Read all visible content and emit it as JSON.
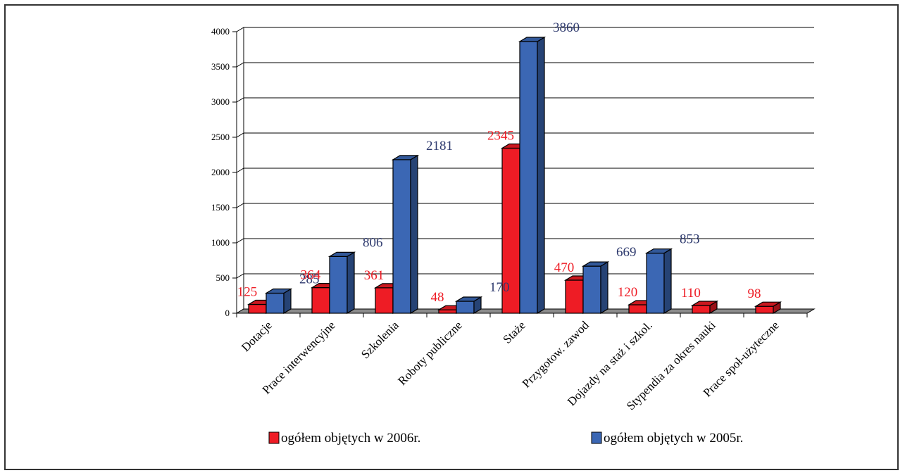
{
  "chart_data": {
    "type": "bar",
    "title": "",
    "xlabel": "",
    "ylabel": "",
    "ylim": [
      0,
      4000
    ],
    "yticks": [
      0,
      500,
      1000,
      1500,
      2000,
      2500,
      3000,
      3500,
      4000
    ],
    "grid": true,
    "legend_position": "bottom",
    "categories": [
      "Dotacje",
      "Prace interwencyjne",
      "Szkolenia",
      "Roboty publiczne",
      "Staże",
      "Przygotow. zawod",
      "Dojazdy na staż i szkol.",
      "Stypendia za okres nauki",
      "Prace społ-użyteczne"
    ],
    "series": [
      {
        "name": "ogółem objętych w 2006r.",
        "color": "#ee1c25",
        "label_color": "#ee1c25",
        "values": [
          125,
          364,
          361,
          48,
          2345,
          470,
          120,
          110,
          98
        ]
      },
      {
        "name": "ogółem objętych w 2005r.",
        "color": "#3b67b4",
        "label_color": "#2e3a6e",
        "values": [
          285,
          806,
          2181,
          170,
          3860,
          669,
          853,
          null,
          null
        ]
      }
    ]
  }
}
